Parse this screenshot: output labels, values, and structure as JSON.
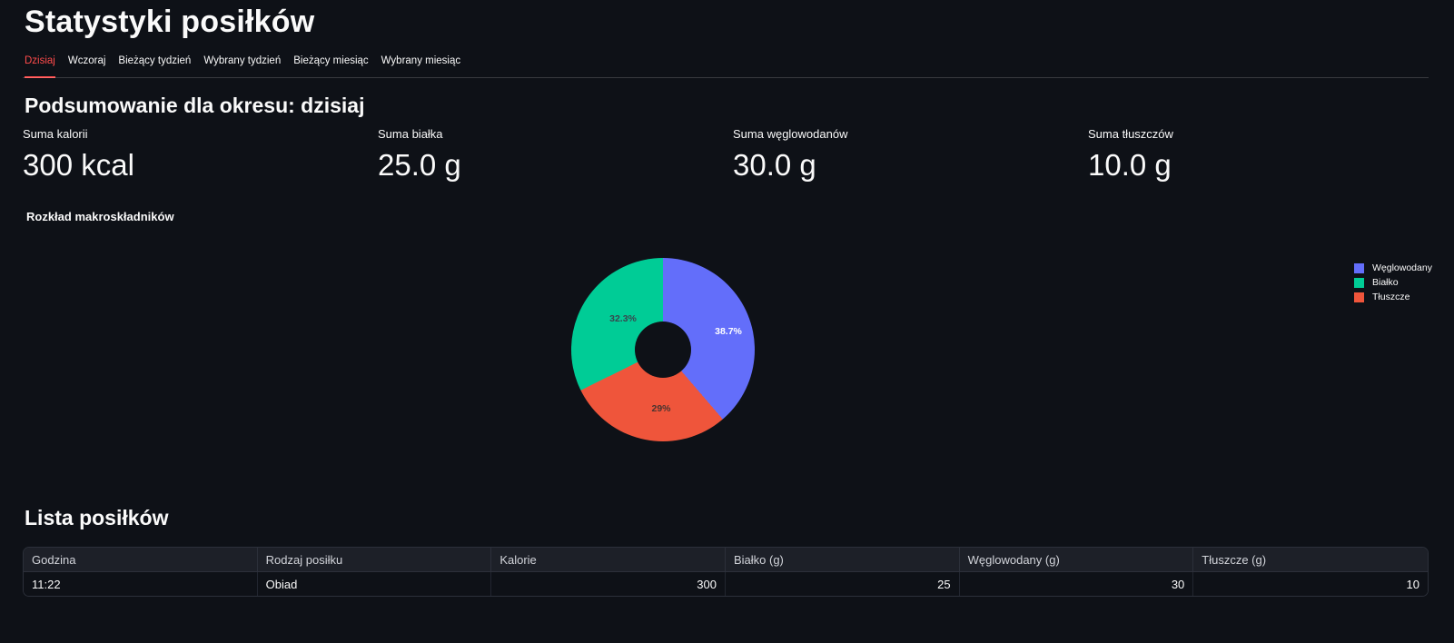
{
  "header": {
    "title": "Statystyki posiłków"
  },
  "tabs": {
    "active_index": 0,
    "items": [
      {
        "label": "Dzisiaj"
      },
      {
        "label": "Wczoraj"
      },
      {
        "label": "Bieżący tydzień"
      },
      {
        "label": "Wybrany tydzień"
      },
      {
        "label": "Bieżący miesiąc"
      },
      {
        "label": "Wybrany miesiąc"
      }
    ]
  },
  "summary": {
    "heading": "Podsumowanie dla okresu: dzisiaj",
    "metrics": [
      {
        "label": "Suma kalorii",
        "value": "300 kcal"
      },
      {
        "label": "Suma białka",
        "value": "25.0 g"
      },
      {
        "label": "Suma węglowodanów",
        "value": "30.0 g"
      },
      {
        "label": "Suma tłuszczów",
        "value": "10.0 g"
      }
    ]
  },
  "chart_data": {
    "type": "pie",
    "title": "Rozkład makroskładników",
    "hole_ratio": 0.3,
    "legend_position": "right",
    "labels": [
      "Węglowodany",
      "Białko",
      "Tłuszcze"
    ],
    "values_percent": [
      38.7,
      32.3,
      29.0
    ],
    "slice_labels": [
      "38.7%",
      "32.3%",
      "29%"
    ],
    "colors": [
      "#636efa",
      "#00cc96",
      "#ef553b"
    ],
    "slice_label_colors": [
      "#ffffff",
      "#38464e",
      "#4a3430"
    ],
    "draw_order_clockwise_from_top": [
      0,
      2,
      1
    ]
  },
  "meals": {
    "heading": "Lista posiłków",
    "columns": [
      "Godzina",
      "Rodzaj posiłku",
      "Kalorie",
      "Białko (g)",
      "Węglowodany (g)",
      "Tłuszcze (g)"
    ],
    "rows": [
      [
        "11:22",
        "Obiad",
        "300",
        "25",
        "30",
        "10"
      ]
    ]
  },
  "colors": {
    "background": "#0e1117",
    "accent": "#ff4b4b",
    "text": "#fafafa",
    "table_header_bg": "#1d2028",
    "table_border": "#2c303a"
  }
}
